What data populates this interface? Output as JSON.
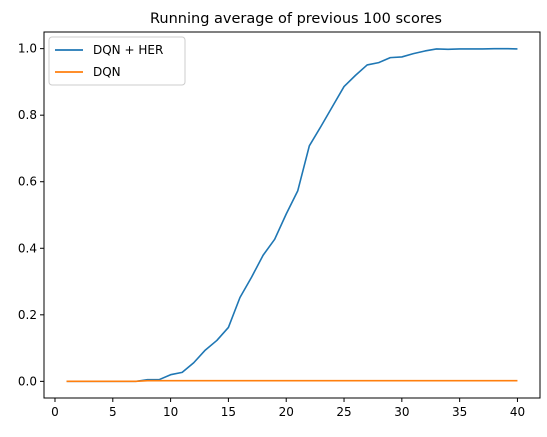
{
  "chart_data": {
    "type": "line",
    "title": "Running average of previous 100 scores",
    "xlabel": "",
    "ylabel": "",
    "xlim": [
      -0.95,
      41.95
    ],
    "ylim": [
      -0.05,
      1.05
    ],
    "xticks": [
      0,
      5,
      10,
      15,
      20,
      25,
      30,
      35,
      40
    ],
    "yticks": [
      0.0,
      0.2,
      0.4,
      0.6,
      0.8,
      1.0
    ],
    "xtick_labels": [
      "0",
      "5",
      "10",
      "15",
      "20",
      "25",
      "30",
      "35",
      "40"
    ],
    "ytick_labels": [
      "0.0",
      "0.2",
      "0.4",
      "0.6",
      "0.8",
      "1.0"
    ],
    "grid": false,
    "legend_position": "top-left",
    "series": [
      {
        "name": "DQN + HER",
        "color": "#1f77b4",
        "x": [
          1,
          2,
          3,
          4,
          5,
          6,
          7,
          8,
          9,
          10,
          11,
          12,
          13,
          14,
          15,
          16,
          17,
          18,
          19,
          20,
          21,
          22,
          23,
          24,
          25,
          26,
          27,
          28,
          29,
          30,
          31,
          32,
          33,
          34,
          35,
          36,
          37,
          38,
          39,
          40
        ],
        "values": [
          0.0,
          0.0,
          0.0,
          0.0,
          0.0,
          0.0,
          0.0,
          0.005,
          0.005,
          0.02,
          0.027,
          0.056,
          0.094,
          0.123,
          0.162,
          0.252,
          0.313,
          0.379,
          0.427,
          0.503,
          0.573,
          0.708,
          0.766,
          0.826,
          0.886,
          0.92,
          0.951,
          0.958,
          0.973,
          0.975,
          0.985,
          0.993,
          0.999,
          0.998,
          0.999,
          0.999,
          0.999,
          1.0,
          1.0,
          0.999
        ]
      },
      {
        "name": "DQN",
        "color": "#ff7f0e",
        "x": [
          1,
          2,
          3,
          4,
          5,
          6,
          7,
          8,
          9,
          10,
          11,
          12,
          13,
          14,
          15,
          16,
          17,
          18,
          19,
          20,
          21,
          22,
          23,
          24,
          25,
          26,
          27,
          28,
          29,
          30,
          31,
          32,
          33,
          34,
          35,
          36,
          37,
          38,
          39,
          40
        ],
        "values": [
          0.0,
          0.0,
          0.0,
          0.0,
          0.0,
          0.0,
          0.0,
          0.002,
          0.002,
          0.002,
          0.002,
          0.002,
          0.002,
          0.002,
          0.002,
          0.002,
          0.002,
          0.002,
          0.002,
          0.002,
          0.002,
          0.002,
          0.002,
          0.002,
          0.002,
          0.002,
          0.002,
          0.002,
          0.002,
          0.002,
          0.002,
          0.002,
          0.002,
          0.002,
          0.002,
          0.002,
          0.002,
          0.002,
          0.002,
          0.002
        ]
      }
    ]
  }
}
